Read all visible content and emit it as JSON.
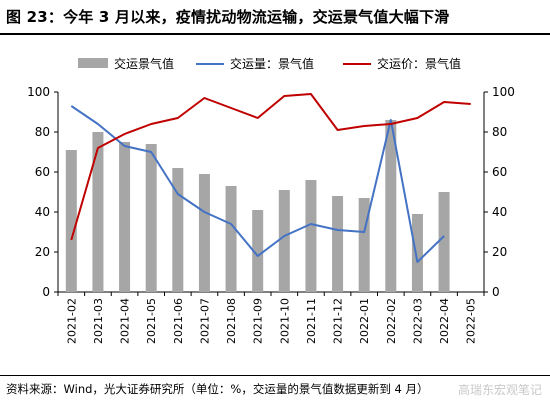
{
  "title": "图 23：今年 3 月以来，疫情扰动物流运输，交运景气值大幅下滑",
  "source": "资料来源：Wind，光大证券研究所（单位：%，交运量的景气值数据更新到 4 月）",
  "watermark": "高瑞东宏观笔记",
  "colors": {
    "bar": "#a6a6a6",
    "line_blue": "#4472c4",
    "line_red": "#c00000"
  },
  "chart_data": {
    "type": "bar+line",
    "categories": [
      "2021-02",
      "2021-03",
      "2021-04",
      "2021-05",
      "2021-06",
      "2021-07",
      "2021-08",
      "2021-09",
      "2021-10",
      "2021-11",
      "2021-12",
      "2022-01",
      "2022-02",
      "2022-03",
      "2022-04",
      "2022-05"
    ],
    "ylim_left": [
      0,
      100
    ],
    "ylim_right": [
      0,
      100
    ],
    "yticks": [
      0,
      20,
      40,
      60,
      80,
      100
    ],
    "legend_position": "top",
    "series": [
      {
        "name": "交运景气值",
        "type": "bar",
        "axis": "left",
        "values": [
          71,
          80,
          75,
          74,
          62,
          59,
          53,
          41,
          51,
          56,
          48,
          47,
          86,
          39,
          50,
          null
        ]
      },
      {
        "name": "交运量：景气值",
        "type": "line",
        "axis": "left",
        "values": [
          93,
          84,
          73,
          70,
          49,
          40,
          34,
          18,
          28,
          34,
          31,
          30,
          86,
          15,
          28,
          null
        ]
      },
      {
        "name": "交运价：景气值",
        "type": "line",
        "axis": "right",
        "values": [
          26,
          72,
          79,
          84,
          87,
          97,
          92,
          87,
          98,
          99,
          81,
          83,
          84,
          87,
          95,
          94
        ]
      }
    ]
  }
}
